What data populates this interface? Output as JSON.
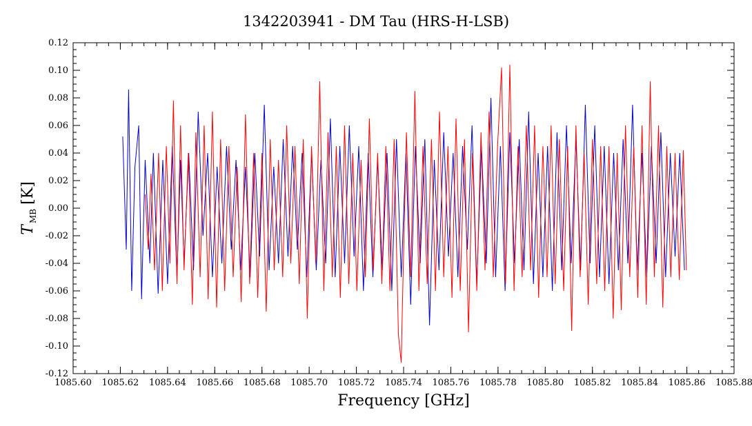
{
  "chart_data": {
    "type": "line",
    "title": "1342203941 - DM Tau (HRS-H-LSB)",
    "xlabel": "Frequency [GHz]",
    "ylabel": {
      "symbol": "T",
      "subscript": "MB",
      "unit": "[K]"
    },
    "xlim": [
      1085.6,
      1085.88
    ],
    "ylim": [
      -0.12,
      0.12
    ],
    "x_ticks": [
      "1085.60",
      "1085.62",
      "1085.64",
      "1085.66",
      "1085.68",
      "1085.70",
      "1085.72",
      "1085.74",
      "1085.76",
      "1085.78",
      "1085.80",
      "1085.82",
      "1085.84",
      "1085.86",
      "1085.88"
    ],
    "y_ticks": [
      "-0.12",
      "-0.10",
      "-0.08",
      "-0.06",
      "-0.04",
      "-0.02",
      "0.00",
      "0.02",
      "0.04",
      "0.06",
      "0.08",
      "0.10",
      "0.12"
    ],
    "grid": false,
    "series": [
      {
        "color": "#0000cc",
        "x": [
          1085.621,
          1085.6225,
          1085.6235,
          1085.6248,
          1085.6262,
          1085.6278,
          1085.629,
          1085.6305,
          1085.6325,
          1085.634,
          1085.636,
          1085.638,
          1085.64,
          1085.642,
          1085.644,
          1085.6455,
          1085.647,
          1085.649,
          1085.651,
          1085.653,
          1085.655,
          1085.657,
          1085.659,
          1085.661,
          1085.663,
          1085.665,
          1085.667,
          1085.669,
          1085.671,
          1085.673,
          1085.675,
          1085.677,
          1085.679,
          1085.681,
          1085.683,
          1085.685,
          1085.687,
          1085.689,
          1085.691,
          1085.693,
          1085.695,
          1085.697,
          1085.699,
          1085.701,
          1085.703,
          1085.705,
          1085.707,
          1085.709,
          1085.711,
          1085.713,
          1085.715,
          1085.717,
          1085.719,
          1085.721,
          1085.723,
          1085.725,
          1085.727,
          1085.729,
          1085.731,
          1085.733,
          1085.735,
          1085.737,
          1085.739,
          1085.741,
          1085.743,
          1085.745,
          1085.747,
          1085.749,
          1085.751,
          1085.753,
          1085.755,
          1085.757,
          1085.759,
          1085.761,
          1085.763,
          1085.765,
          1085.767,
          1085.769,
          1085.771,
          1085.773,
          1085.775,
          1085.777,
          1085.779,
          1085.781,
          1085.783,
          1085.785,
          1085.787,
          1085.789,
          1085.791,
          1085.793,
          1085.795,
          1085.797,
          1085.799,
          1085.801,
          1085.803,
          1085.805,
          1085.807,
          1085.809,
          1085.811,
          1085.813,
          1085.815,
          1085.817,
          1085.819,
          1085.821,
          1085.823,
          1085.825,
          1085.827,
          1085.829,
          1085.831,
          1085.833,
          1085.835,
          1085.837,
          1085.839,
          1085.841,
          1085.843,
          1085.845,
          1085.847,
          1085.849,
          1085.851,
          1085.853,
          1085.855,
          1085.857,
          1085.859
        ],
        "y": [
          0.052,
          -0.03,
          0.086,
          -0.06,
          0.03,
          0.06,
          -0.066,
          0.035,
          -0.04,
          0.04,
          -0.062,
          0.035,
          -0.055,
          0.045,
          -0.05,
          0.035,
          -0.04,
          0.04,
          -0.045,
          0.07,
          -0.02,
          0.04,
          -0.05,
          0.03,
          -0.04,
          0.045,
          -0.03,
          0.035,
          -0.045,
          0.03,
          -0.05,
          0.04,
          -0.035,
          0.075,
          -0.045,
          0.03,
          -0.04,
          0.05,
          -0.035,
          0.045,
          -0.03,
          0.04,
          -0.05,
          0.04,
          -0.045,
          0.035,
          -0.04,
          0.065,
          -0.05,
          0.045,
          -0.04,
          0.06,
          -0.035,
          0.045,
          -0.06,
          0.04,
          -0.05,
          0.035,
          -0.045,
          0.04,
          -0.06,
          0.05,
          -0.05,
          0.04,
          -0.07,
          0.045,
          -0.04,
          0.05,
          -0.085,
          0.035,
          -0.045,
          0.055,
          -0.035,
          0.04,
          -0.05,
          0.045,
          -0.03,
          0.06,
          -0.055,
          0.045,
          -0.04,
          0.08,
          -0.05,
          0.045,
          -0.06,
          0.055,
          -0.04,
          0.05,
          -0.045,
          0.07,
          -0.055,
          0.04,
          -0.05,
          0.045,
          -0.06,
          0.055,
          -0.045,
          0.06,
          -0.04,
          0.05,
          -0.045,
          0.075,
          -0.04,
          0.06,
          -0.05,
          0.045,
          -0.055,
          0.04,
          -0.045,
          0.05,
          -0.04,
          0.075,
          -0.045,
          0.04,
          -0.05,
          0.045,
          -0.04,
          0.055,
          -0.05,
          0.04,
          -0.035,
          0.04,
          -0.045
        ]
      },
      {
        "color": "#ff0000",
        "x": [
          1085.6305,
          1085.6318,
          1085.633,
          1085.6345,
          1085.6362,
          1085.6378,
          1085.6395,
          1085.641,
          1085.6425,
          1085.644,
          1085.6455,
          1085.647,
          1085.6488,
          1085.6505,
          1085.652,
          1085.6538,
          1085.6555,
          1085.6572,
          1085.659,
          1085.6608,
          1085.6625,
          1085.6642,
          1085.666,
          1085.6678,
          1085.6695,
          1085.6712,
          1085.673,
          1085.6748,
          1085.6765,
          1085.6782,
          1085.68,
          1085.6818,
          1085.6835,
          1085.6852,
          1085.687,
          1085.6888,
          1085.6905,
          1085.6922,
          1085.694,
          1085.6958,
          1085.6975,
          1085.6992,
          1085.701,
          1085.7028,
          1085.7045,
          1085.7062,
          1085.708,
          1085.7098,
          1085.7115,
          1085.7132,
          1085.715,
          1085.7168,
          1085.7185,
          1085.7202,
          1085.722,
          1085.7238,
          1085.7255,
          1085.7272,
          1085.729,
          1085.7308,
          1085.7325,
          1085.7342,
          1085.736,
          1085.7378,
          1085.739,
          1085.7395,
          1085.7412,
          1085.743,
          1085.7448,
          1085.7465,
          1085.7482,
          1085.75,
          1085.7518,
          1085.7535,
          1085.7552,
          1085.757,
          1085.7588,
          1085.7605,
          1085.7622,
          1085.764,
          1085.7658,
          1085.7675,
          1085.7692,
          1085.771,
          1085.7728,
          1085.7745,
          1085.7762,
          1085.778,
          1085.7798,
          1085.7815,
          1085.7832,
          1085.785,
          1085.7868,
          1085.7885,
          1085.7902,
          1085.792,
          1085.7938,
          1085.7955,
          1085.7972,
          1085.799,
          1085.8008,
          1085.8025,
          1085.8042,
          1085.806,
          1085.8078,
          1085.8095,
          1085.8112,
          1085.813,
          1085.8148,
          1085.8165,
          1085.8182,
          1085.82,
          1085.8218,
          1085.8235,
          1085.8252,
          1085.827,
          1085.8288,
          1085.8305,
          1085.8322,
          1085.834,
          1085.8358,
          1085.8375,
          1085.8392,
          1085.841,
          1085.8428,
          1085.8445,
          1085.8462,
          1085.848,
          1085.8498,
          1085.8515,
          1085.8532,
          1085.855,
          1085.8568,
          1085.8585,
          1085.8598
        ],
        "y": [
          0.01,
          -0.03,
          0.025,
          -0.045,
          0.04,
          -0.06,
          0.045,
          -0.04,
          0.078,
          -0.055,
          0.06,
          -0.045,
          0.04,
          -0.07,
          0.055,
          -0.05,
          0.06,
          -0.066,
          0.07,
          -0.072,
          0.05,
          -0.06,
          0.045,
          -0.05,
          0.03,
          -0.068,
          0.068,
          -0.055,
          0.04,
          -0.065,
          0.04,
          -0.075,
          0.05,
          -0.045,
          0.035,
          -0.05,
          0.06,
          -0.04,
          0.045,
          -0.055,
          0.05,
          -0.08,
          0.045,
          -0.04,
          0.092,
          -0.06,
          0.055,
          -0.05,
          0.045,
          -0.065,
          0.06,
          -0.055,
          0.04,
          -0.06,
          0.035,
          -0.05,
          0.065,
          -0.045,
          0.04,
          -0.055,
          0.045,
          -0.06,
          0.05,
          -0.092,
          -0.112,
          -0.07,
          0.055,
          -0.05,
          0.085,
          -0.06,
          0.045,
          -0.055,
          0.05,
          -0.06,
          0.07,
          -0.05,
          0.045,
          -0.065,
          0.065,
          -0.06,
          0.05,
          -0.09,
          0.04,
          -0.06,
          0.055,
          -0.045,
          0.07,
          -0.05,
          0.045,
          0.102,
          -0.055,
          0.104,
          -0.06,
          0.045,
          -0.05,
          0.06,
          -0.045,
          0.06,
          -0.065,
          0.045,
          -0.05,
          0.06,
          -0.055,
          0.05,
          -0.06,
          0.045,
          -0.089,
          0.06,
          -0.05,
          0.04,
          -0.07,
          0.05,
          -0.055,
          0.045,
          -0.06,
          0.045,
          -0.08,
          0.04,
          -0.074,
          0.06,
          -0.05,
          0.045,
          -0.065,
          0.06,
          -0.07,
          0.092,
          -0.05,
          0.06,
          -0.072,
          0.045,
          -0.05,
          0.04,
          -0.052,
          0.042,
          -0.045
        ]
      }
    ]
  }
}
